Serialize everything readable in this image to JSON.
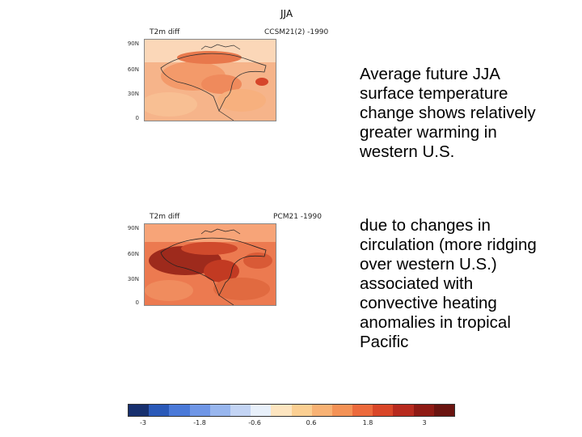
{
  "season_title": "JJA",
  "panels": [
    {
      "variable": "T2m diff",
      "run_label": "CCSM21(2) -1990",
      "lat_labels": [
        "90N",
        "60N",
        "30N",
        "0"
      ]
    },
    {
      "variable": "T2m diff",
      "run_label": "PCM21 -1990",
      "lat_labels": [
        "90N",
        "60N",
        "30N",
        "0"
      ]
    }
  ],
  "text": {
    "paragraph1": "Average future JJA surface temperature change shows relatively greater warming in western U.S.",
    "paragraph2": "due to changes in circulation (more ridging over western U.S.) associated with convective heating anomalies in tropical Pacific"
  },
  "colorbar": {
    "colors": [
      "#17306e",
      "#2a59b8",
      "#4a79d8",
      "#6f96e6",
      "#98b6ee",
      "#c3d4f4",
      "#e8f0fa",
      "#fde5c0",
      "#fbcf92",
      "#f8b274",
      "#f49256",
      "#ec6a3c",
      "#d94628",
      "#b72a1e",
      "#8e1a14",
      "#6a1410"
    ],
    "tick_labels": [
      "-3",
      "-1.8",
      "-0.6",
      "0.6",
      "1.8",
      "3"
    ]
  }
}
